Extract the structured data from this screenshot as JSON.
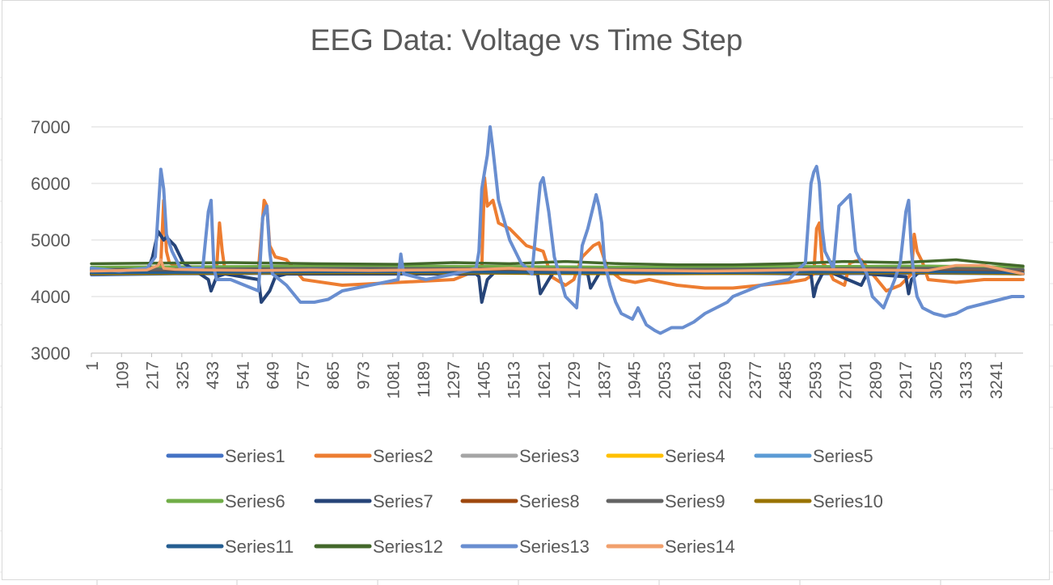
{
  "chart_data": {
    "type": "line",
    "title": "EEG Data: Voltage vs Time Step",
    "xlabel": "",
    "ylabel": "",
    "ylim": [
      3000,
      7000
    ],
    "yticks": [
      "7000",
      "6000",
      "5000",
      "4000",
      "3000"
    ],
    "x_range": [
      1,
      3340
    ],
    "x_tick_labels": [
      "1",
      "109",
      "217",
      "325",
      "433",
      "541",
      "649",
      "757",
      "865",
      "973",
      "1081",
      "1189",
      "1297",
      "1405",
      "1513",
      "1621",
      "1729",
      "1837",
      "1945",
      "2053",
      "2161",
      "2269",
      "2377",
      "2485",
      "2593",
      "2701",
      "2809",
      "2917",
      "3025",
      "3133",
      "3241"
    ],
    "grid": "horizontal",
    "legend_position": "bottom",
    "series": [
      {
        "name": "Series1",
        "color": "#4472C4",
        "x": [
          1,
          300,
          400,
          1400,
          1700,
          2600,
          3000,
          3340
        ],
        "y": [
          4380,
          4400,
          4400,
          4430,
          4420,
          4400,
          4410,
          4400
        ]
      },
      {
        "name": "Series2",
        "color": "#ED7D31",
        "x": [
          1,
          100,
          200,
          240,
          250,
          260,
          270,
          280,
          300,
          330,
          430,
          450,
          460,
          470,
          480,
          600,
          620,
          630,
          640,
          660,
          700,
          760,
          900,
          1100,
          1300,
          1350,
          1380,
          1390,
          1400,
          1410,
          1420,
          1440,
          1460,
          1500,
          1560,
          1620,
          1650,
          1700,
          1730,
          1760,
          1800,
          1820,
          1830,
          1850,
          1900,
          1950,
          2000,
          2100,
          2200,
          2300,
          2400,
          2500,
          2560,
          2590,
          2600,
          2610,
          2620,
          2640,
          2660,
          2700,
          2720,
          2760,
          2800,
          2850,
          2900,
          2940,
          2950,
          2960,
          2980,
          3000,
          3100,
          3200,
          3340
        ],
        "y": [
          4400,
          4420,
          4450,
          4500,
          4600,
          5700,
          4800,
          4600,
          4550,
          4450,
          4450,
          4500,
          5300,
          4800,
          4450,
          4500,
          5700,
          5600,
          4900,
          4700,
          4650,
          4300,
          4200,
          4250,
          4300,
          4400,
          4500,
          4400,
          4500,
          6100,
          5600,
          5700,
          5300,
          5200,
          4900,
          4800,
          4350,
          4200,
          4300,
          4700,
          4900,
          4950,
          4800,
          4500,
          4300,
          4250,
          4300,
          4200,
          4150,
          4150,
          4200,
          4250,
          4300,
          4400,
          5200,
          5300,
          4600,
          4500,
          4300,
          4200,
          4600,
          4650,
          4400,
          4100,
          4200,
          4400,
          5100,
          4800,
          4600,
          4300,
          4250,
          4300,
          4300
        ]
      },
      {
        "name": "Series3",
        "color": "#A5A5A5",
        "x": [
          1,
          500,
          1000,
          1500,
          2000,
          2500,
          3000,
          3340
        ],
        "y": [
          4450,
          4460,
          4470,
          4460,
          4450,
          4460,
          4470,
          4450
        ]
      },
      {
        "name": "Series4",
        "color": "#FFC000",
        "x": [
          1,
          500,
          1000,
          1500,
          2000,
          2500,
          3000,
          3340
        ],
        "y": [
          4440,
          4450,
          4460,
          4450,
          4440,
          4450,
          4460,
          4440
        ]
      },
      {
        "name": "Series5",
        "color": "#5B9BD5",
        "x": [
          1,
          500,
          1000,
          1500,
          2000,
          2500,
          3000,
          3340
        ],
        "y": [
          4470,
          4480,
          4470,
          4480,
          4460,
          4470,
          4480,
          4470
        ]
      },
      {
        "name": "Series6",
        "color": "#70AD47",
        "x": [
          1,
          500,
          1000,
          1500,
          2000,
          2500,
          3000,
          3340
        ],
        "y": [
          4520,
          4530,
          4540,
          4530,
          4520,
          4530,
          4540,
          4520
        ]
      },
      {
        "name": "Series7",
        "color": "#264478",
        "x": [
          1,
          200,
          220,
          240,
          260,
          270,
          300,
          330,
          420,
          430,
          450,
          480,
          600,
          610,
          640,
          660,
          700,
          1380,
          1390,
          1400,
          1420,
          1450,
          1600,
          1610,
          1640,
          1660,
          1780,
          1790,
          1820,
          1840,
          2580,
          2590,
          2600,
          2620,
          2640,
          2760,
          2780,
          2920,
          2930,
          2940,
          2960,
          2980,
          3340
        ],
        "y": [
          4400,
          4420,
          4700,
          5150,
          5000,
          5050,
          4900,
          4600,
          4300,
          4100,
          4350,
          4400,
          4300,
          3900,
          4100,
          4350,
          4400,
          4400,
          4350,
          3900,
          4300,
          4450,
          4400,
          4050,
          4300,
          4450,
          4400,
          4150,
          4400,
          4450,
          4400,
          4000,
          4200,
          4400,
          4450,
          4200,
          4400,
          4350,
          4050,
          4300,
          4400,
          4450,
          4400
        ]
      },
      {
        "name": "Series8",
        "color": "#9E480E",
        "x": [
          1,
          500,
          1000,
          1500,
          2000,
          2500,
          3000,
          3340
        ],
        "y": [
          4460,
          4470,
          4480,
          4470,
          4460,
          4470,
          4480,
          4460
        ]
      },
      {
        "name": "Series9",
        "color": "#636363",
        "x": [
          1,
          500,
          1000,
          1500,
          2000,
          2500,
          3000,
          3340
        ],
        "y": [
          4480,
          4490,
          4500,
          4490,
          4480,
          4490,
          4500,
          4480
        ]
      },
      {
        "name": "Series10",
        "color": "#997300",
        "x": [
          1,
          500,
          1000,
          1500,
          2000,
          2500,
          3000,
          3340
        ],
        "y": [
          4400,
          4410,
          4420,
          4410,
          4400,
          4410,
          4420,
          4400
        ]
      },
      {
        "name": "Series11",
        "color": "#255E91",
        "x": [
          1,
          500,
          1000,
          1500,
          2000,
          2500,
          3000,
          3340
        ],
        "y": [
          4420,
          4430,
          4440,
          4430,
          4420,
          4430,
          4440,
          4420
        ]
      },
      {
        "name": "Series12",
        "color": "#43682B",
        "x": [
          1,
          200,
          500,
          800,
          1100,
          1300,
          1500,
          1700,
          1900,
          2100,
          2300,
          2500,
          2700,
          2900,
          3100,
          3200,
          3340
        ],
        "y": [
          4580,
          4590,
          4600,
          4580,
          4570,
          4600,
          4580,
          4620,
          4580,
          4560,
          4560,
          4580,
          4620,
          4600,
          4650,
          4600,
          4540
        ]
      },
      {
        "name": "Series13",
        "color": "#698ED0",
        "x": [
          1,
          100,
          200,
          230,
          250,
          260,
          270,
          290,
          320,
          400,
          420,
          430,
          440,
          450,
          460,
          500,
          550,
          600,
          615,
          630,
          640,
          650,
          700,
          750,
          800,
          850,
          900,
          1000,
          1100,
          1110,
          1120,
          1200,
          1300,
          1380,
          1390,
          1400,
          1410,
          1420,
          1430,
          1440,
          1460,
          1500,
          1540,
          1580,
          1600,
          1610,
          1620,
          1640,
          1660,
          1700,
          1740,
          1760,
          1780,
          1800,
          1810,
          1820,
          1830,
          1840,
          1860,
          1880,
          1900,
          1940,
          1960,
          1990,
          2020,
          2040,
          2080,
          2120,
          2160,
          2200,
          2240,
          2280,
          2300,
          2400,
          2500,
          2560,
          2580,
          2590,
          2600,
          2610,
          2620,
          2630,
          2660,
          2680,
          2700,
          2720,
          2740,
          2760,
          2780,
          2800,
          2840,
          2880,
          2900,
          2920,
          2930,
          2940,
          2950,
          2960,
          2980,
          3020,
          3060,
          3100,
          3140,
          3180,
          3220,
          3260,
          3300,
          3340
        ],
        "y": [
          4500,
          4450,
          4500,
          4700,
          6250,
          5900,
          5100,
          4800,
          4500,
          4500,
          5500,
          5700,
          4500,
          4300,
          4300,
          4300,
          4200,
          4100,
          5400,
          5600,
          4800,
          4400,
          4200,
          3900,
          3900,
          3950,
          4100,
          4200,
          4300,
          4750,
          4400,
          4300,
          4400,
          4500,
          4800,
          5900,
          6200,
          6500,
          7000,
          6600,
          5700,
          5000,
          4600,
          4400,
          5500,
          6000,
          6100,
          5500,
          4700,
          4000,
          3800,
          4900,
          5200,
          5600,
          5800,
          5600,
          5300,
          4600,
          4200,
          3900,
          3700,
          3600,
          3800,
          3500,
          3400,
          3350,
          3450,
          3450,
          3550,
          3700,
          3800,
          3900,
          4000,
          4200,
          4300,
          4600,
          6000,
          6200,
          6300,
          6000,
          5200,
          4800,
          4500,
          5600,
          5700,
          5800,
          4800,
          4600,
          4400,
          4000,
          3800,
          4300,
          4600,
          5500,
          5700,
          4800,
          4300,
          4000,
          3800,
          3700,
          3650,
          3700,
          3800,
          3850,
          3900,
          3950,
          4000,
          4000
        ]
      },
      {
        "name": "Series14",
        "color": "#F1A06D",
        "x": [
          1,
          200,
          240,
          250,
          260,
          300,
          400,
          600,
          800,
          1000,
          1200,
          1400,
          1500,
          1600,
          1800,
          2000,
          2200,
          2400,
          2600,
          2800,
          3000,
          3100,
          3200,
          3340
        ],
        "y": [
          4450,
          4470,
          4550,
          4650,
          4500,
          4480,
          4470,
          4460,
          4470,
          4460,
          4470,
          4480,
          4500,
          4480,
          4470,
          4460,
          4450,
          4460,
          4480,
          4470,
          4460,
          4550,
          4550,
          4400
        ]
      }
    ]
  }
}
